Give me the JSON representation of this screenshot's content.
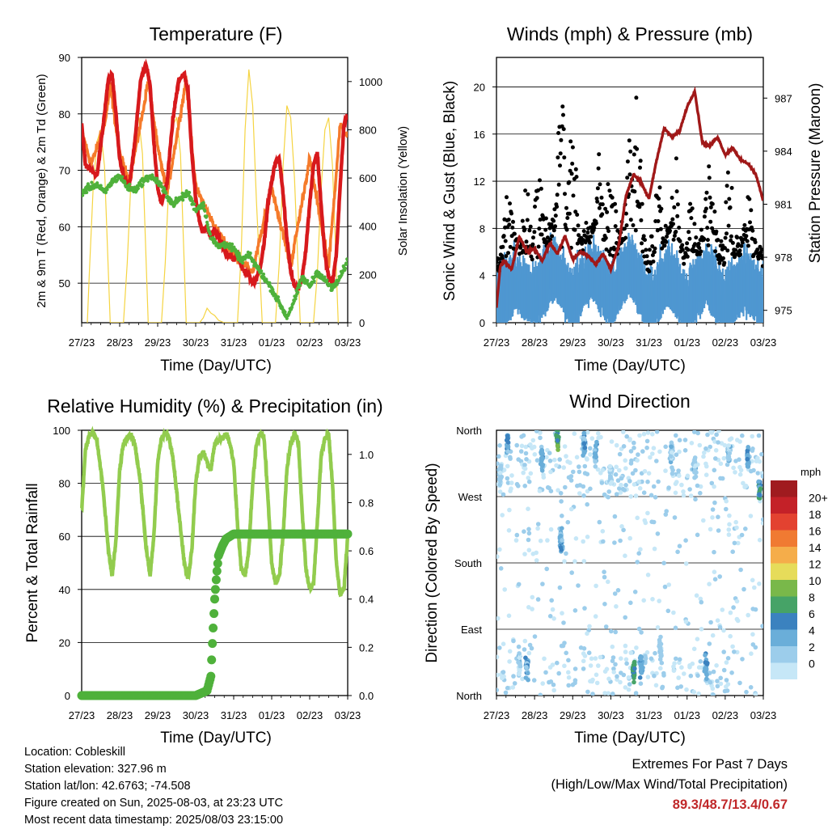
{
  "panels": {
    "temperature": {
      "title": "Temperature (F)",
      "ylabel": "2m & 9m T (Red, Orange) & 2m Td (Green)",
      "y2label": "Solar Insolation (Yellow)",
      "xlabel": "Time (Day/UTC)"
    },
    "winds": {
      "title": "Winds (mph) & Pressure (mb)",
      "ylabel": "Sonic Wind & Gust (Blue, Black)",
      "y2label": "Station Pressure (Maroon)",
      "xlabel": "Time (Day/UTC)"
    },
    "humidity": {
      "title": "Relative Humidity (%) & Precipitation (in)",
      "ylabel": "Percent & Total Rainfall",
      "xlabel": "Time (Day/UTC)"
    },
    "direction": {
      "title": "Wind Direction",
      "ylabel": "Direction (Colored By Speed)",
      "xlabel": "Time (Day/UTC)",
      "colorbar_label": "mph"
    }
  },
  "x_ticks": [
    "27/23",
    "28/23",
    "29/23",
    "30/23",
    "31/23",
    "01/23",
    "02/23",
    "03/23"
  ],
  "info": {
    "location": "Location: Cobleskill",
    "elevation": "Station elevation: 327.96 m",
    "latlon": "Station lat/lon: 42.6763; -74.508",
    "created": "Figure created on Sun, 2025-08-03, at 23:23 UTC",
    "recent": "Most recent data timestamp: 2025/08/03 23:15:00"
  },
  "extremes": {
    "line1": "Extremes For Past 7 Days",
    "line2": "(High/Low/Max Wind/Total Precipitation)",
    "values": "89.3/48.7/13.4/0.67"
  },
  "colors": {
    "temp_2m": "#d7191c",
    "temp_9m": "#f57a2a",
    "dewpoint": "#4fb13b",
    "insolation": "#f5d442",
    "wind": "#4f97d1",
    "gust": "#000000",
    "pressure": "#a01818",
    "rh": "#92cc4e",
    "precip": "#4fb13b"
  },
  "chart_data": [
    {
      "type": "line",
      "title": "Temperature (F)",
      "xlabel": "Time (Day/UTC)",
      "ylabel": "2m & 9m T (Red, Orange) & 2m Td (Green)",
      "y2label": "Solar Insolation (Yellow)",
      "x_unit": "days since 27/23 UTC",
      "ylim": [
        43,
        90
      ],
      "y_ticks": [
        50,
        60,
        70,
        80,
        90
      ],
      "y2lim": [
        0,
        1100
      ],
      "y2_ticks": [
        0,
        200,
        400,
        600,
        800,
        1000
      ],
      "series": [
        {
          "name": "2m T",
          "axis": "left",
          "x": [
            0,
            0.1,
            0.25,
            0.4,
            0.55,
            0.7,
            0.8,
            0.9,
            1.0,
            1.1,
            1.25,
            1.4,
            1.55,
            1.7,
            1.8,
            1.9,
            2.0,
            2.1,
            2.25,
            2.4,
            2.55,
            2.7,
            2.8,
            2.9,
            3.0,
            3.1,
            3.2,
            3.3,
            3.4,
            3.5,
            3.6,
            3.7,
            3.8,
            3.9,
            4.0,
            4.1,
            4.2,
            4.3,
            4.4,
            4.5,
            4.6,
            4.7,
            4.8,
            4.9,
            5.0,
            5.1,
            5.2,
            5.3,
            5.4,
            5.5,
            5.6,
            5.7,
            5.8,
            5.9,
            6.0,
            6.1,
            6.2,
            6.3,
            6.4,
            6.5,
            6.6,
            6.7,
            6.8,
            6.9,
            7.0
          ],
          "values": [
            78,
            71,
            70,
            69,
            77,
            86,
            87,
            80,
            72,
            69,
            67,
            75,
            86,
            88.5,
            85,
            75,
            67,
            64,
            68,
            79,
            86,
            87,
            84,
            73,
            65,
            61,
            59,
            60,
            58,
            59.5,
            58,
            57,
            55,
            55,
            54,
            55,
            53,
            52,
            51.5,
            50,
            51,
            53,
            57,
            64,
            68,
            71.5,
            72,
            66,
            58,
            52,
            49.5,
            49,
            51,
            56,
            64,
            71,
            73,
            64,
            55,
            51,
            50,
            55,
            67,
            78,
            80
          ]
        },
        {
          "name": "9m T",
          "axis": "left",
          "x": [
            0,
            0.25,
            0.6,
            0.75,
            1.0,
            1.25,
            1.6,
            1.75,
            2.0,
            2.25,
            2.6,
            2.75,
            3.0,
            3.5,
            4.0,
            4.5,
            5.0,
            5.5,
            6.0,
            6.5,
            6.8,
            7.0
          ],
          "values": [
            77,
            71,
            78,
            85,
            73,
            68,
            80,
            86,
            74,
            66,
            80,
            86,
            67,
            60,
            55,
            52,
            67,
            53,
            72,
            53,
            78,
            76
          ]
        },
        {
          "name": "2m Td",
          "axis": "left",
          "x": [
            0,
            0.2,
            0.4,
            0.6,
            0.8,
            1.0,
            1.2,
            1.4,
            1.6,
            1.8,
            2.0,
            2.2,
            2.4,
            2.6,
            2.8,
            3.0,
            3.2,
            3.4,
            3.6,
            3.8,
            4.0,
            4.2,
            4.4,
            4.6,
            4.8,
            5.0,
            5.2,
            5.4,
            5.6,
            5.8,
            6.0,
            6.2,
            6.4,
            6.6,
            6.8,
            7.0
          ],
          "values": [
            66,
            67,
            67.5,
            66,
            68,
            69,
            67,
            66.5,
            68,
            69,
            68,
            66,
            64,
            65,
            66,
            63,
            64,
            58,
            56.5,
            57,
            56,
            54,
            55,
            53,
            51,
            49,
            46.5,
            44,
            47,
            51,
            49.5,
            52,
            50.5,
            49,
            51,
            54
          ]
        },
        {
          "name": "Solar Insolation",
          "axis": "right",
          "x": [
            0.15,
            0.2,
            0.3,
            0.4,
            0.5,
            0.6,
            0.75,
            1.1,
            1.2,
            1.3,
            1.4,
            1.5,
            1.6,
            1.75,
            2.1,
            2.2,
            2.3,
            2.4,
            2.5,
            2.6,
            2.75,
            3.1,
            3.2,
            3.3,
            3.4,
            3.5,
            3.6,
            3.75,
            4.1,
            4.2,
            4.3,
            4.4,
            4.5,
            4.6,
            4.75,
            5.1,
            5.2,
            5.3,
            5.4,
            5.5,
            5.6,
            5.75,
            6.1,
            6.2,
            6.3,
            6.4,
            6.5,
            6.6,
            6.75
          ],
          "values": [
            0,
            200,
            550,
            750,
            800,
            650,
            0,
            0,
            250,
            600,
            800,
            850,
            700,
            0,
            0,
            250,
            600,
            820,
            850,
            700,
            0,
            0,
            20,
            60,
            40,
            30,
            10,
            0,
            0,
            300,
            800,
            1050,
            900,
            500,
            0,
            0,
            250,
            650,
            900,
            850,
            600,
            0,
            0,
            200,
            550,
            800,
            850,
            650,
            0
          ]
        }
      ]
    },
    {
      "type": "line",
      "title": "Winds (mph) & Pressure (mb)",
      "xlabel": "Time (Day/UTC)",
      "ylabel": "Sonic Wind & Gust (Blue, Black)",
      "y2label": "Station Pressure (Maroon)",
      "x_unit": "days since 27/23 UTC",
      "ylim": [
        0,
        22.5
      ],
      "y_ticks": [
        0,
        4,
        8,
        12,
        16,
        20
      ],
      "y2lim": [
        974.3,
        989.3
      ],
      "y2_ticks": [
        975,
        978,
        981,
        984,
        987
      ],
      "series": [
        {
          "name": "Station Pressure",
          "axis": "right",
          "x": [
            0,
            0.1,
            0.2,
            0.4,
            0.6,
            0.8,
            1.0,
            1.2,
            1.4,
            1.6,
            1.8,
            2.0,
            2.2,
            2.4,
            2.6,
            2.8,
            3.0,
            3.2,
            3.4,
            3.6,
            3.8,
            4.0,
            4.2,
            4.4,
            4.6,
            4.8,
            5.0,
            5.2,
            5.4,
            5.6,
            5.8,
            6.0,
            6.2,
            6.4,
            6.6,
            6.8,
            7.0
          ],
          "values": [
            975.2,
            977.5,
            977.8,
            977.3,
            979.2,
            978.3,
            978.5,
            977.8,
            978.8,
            978.2,
            979.2,
            977.9,
            978.3,
            978.1,
            977.6,
            978.2,
            977.3,
            978.6,
            981.5,
            982.7,
            982.2,
            981.3,
            983.5,
            985.3,
            984.8,
            985.1,
            986.5,
            987.4,
            984.5,
            984.3,
            984.8,
            983.8,
            984.2,
            983.5,
            983.3,
            982.7,
            981.2
          ]
        },
        {
          "name": "Sonic Wind (mean)",
          "axis": "left",
          "x": [
            0,
            0.5,
            1.0,
            1.5,
            2.0,
            2.5,
            3.0,
            3.5,
            4.0,
            4.5,
            5.0,
            5.5,
            6.0,
            6.5,
            7.0
          ],
          "values": [
            1.5,
            3.5,
            2,
            4.5,
            2,
            4.5,
            2,
            5,
            1.5,
            4,
            1.5,
            4,
            1.5,
            3.5,
            2
          ]
        },
        {
          "name": "Gust (peak)",
          "axis": "left",
          "x": [
            0.3,
            0.8,
            1.1,
            1.7,
            2.0,
            2.7,
            3.0,
            3.5,
            3.7,
            4.2,
            4.7,
            5.1,
            5.6,
            6.1,
            6.6
          ],
          "values": [
            11,
            12.5,
            14,
            19.5,
            19,
            14,
            14,
            16,
            20.5,
            15,
            13,
            11,
            14,
            14,
            11.5
          ]
        }
      ]
    },
    {
      "type": "line",
      "title": "Relative Humidity (%) & Precipitation (in)",
      "xlabel": "Time (Day/UTC)",
      "ylabel": "Percent & Total Rainfall",
      "x_unit": "days since 27/23 UTC",
      "ylim": [
        0,
        100
      ],
      "y_ticks": [
        0,
        20,
        40,
        60,
        80,
        100
      ],
      "y2lim": [
        0,
        1.1
      ],
      "y2_ticks": [
        0.0,
        0.2,
        0.4,
        0.6,
        0.8,
        1.0
      ],
      "series": [
        {
          "name": "Relative Humidity",
          "axis": "left",
          "x": [
            0,
            0.1,
            0.2,
            0.3,
            0.4,
            0.55,
            0.7,
            0.8,
            0.9,
            1.0,
            1.1,
            1.2,
            1.3,
            1.4,
            1.55,
            1.7,
            1.8,
            1.9,
            2.0,
            2.1,
            2.2,
            2.3,
            2.4,
            2.55,
            2.7,
            2.8,
            2.9,
            3.0,
            3.1,
            3.2,
            3.3,
            3.4,
            3.5,
            3.6,
            3.7,
            3.8,
            3.9,
            4.0,
            4.1,
            4.2,
            4.3,
            4.4,
            4.5,
            4.6,
            4.7,
            4.8,
            4.9,
            5.0,
            5.1,
            5.2,
            5.3,
            5.4,
            5.5,
            5.6,
            5.7,
            5.8,
            5.9,
            6.0,
            6.1,
            6.2,
            6.3,
            6.4,
            6.5,
            6.6,
            6.7,
            6.8,
            6.9,
            7.0
          ],
          "values": [
            70,
            93,
            98,
            99,
            96,
            80,
            55,
            45,
            58,
            85,
            95,
            97,
            98,
            95,
            80,
            55,
            45,
            60,
            88,
            97,
            99,
            97,
            90,
            70,
            50,
            44,
            55,
            80,
            90,
            92,
            88,
            85,
            95,
            96,
            97,
            99,
            95,
            88,
            65,
            48,
            45,
            55,
            80,
            95,
            99,
            97,
            75,
            50,
            42,
            45,
            60,
            85,
            95,
            99,
            96,
            70,
            48,
            40,
            42,
            65,
            90,
            97,
            98,
            80,
            50,
            38,
            40,
            60
          ]
        },
        {
          "name": "Total Precipitation",
          "axis": "right",
          "x": [
            0,
            3.0,
            3.3,
            3.4,
            3.45,
            3.5,
            3.55,
            3.6,
            3.7,
            3.8,
            4.0,
            4.5,
            5.0,
            6.0,
            7.0
          ],
          "values": [
            0,
            0,
            0.02,
            0.08,
            0.25,
            0.4,
            0.5,
            0.58,
            0.62,
            0.65,
            0.67,
            0.67,
            0.67,
            0.67,
            0.67
          ]
        }
      ]
    },
    {
      "type": "scatter",
      "title": "Wind Direction",
      "xlabel": "Time (Day/UTC)",
      "ylabel": "Direction (Colored By Speed)",
      "x_unit": "days since 27/23 UTC",
      "ylim": [
        0,
        360
      ],
      "y_ticks": [
        "North",
        "East",
        "South",
        "West",
        "North"
      ],
      "colorbar": {
        "label": "mph",
        "levels": [
          "0",
          "2",
          "4",
          "6",
          "8",
          "10",
          "12",
          "14",
          "16",
          "18",
          "20+"
        ],
        "colors": [
          "#c6e7f7",
          "#9ccdeb",
          "#6aaed9",
          "#3b82bf",
          "#46a367",
          "#79b84a",
          "#e6dc5a",
          "#f5ad4a",
          "#f07a32",
          "#e34230",
          "#c42128",
          "#a01b1f"
        ]
      },
      "clusters": [
        {
          "x": 0.1,
          "dir": 300,
          "speed": 4
        },
        {
          "x": 0.3,
          "dir": 340,
          "speed": 6
        },
        {
          "x": 0.6,
          "dir": 45,
          "speed": 4
        },
        {
          "x": 0.8,
          "dir": 40,
          "speed": 6
        },
        {
          "x": 1.2,
          "dir": 320,
          "speed": 6
        },
        {
          "x": 1.6,
          "dir": 350,
          "speed": 10
        },
        {
          "x": 1.7,
          "dir": 210,
          "speed": 6
        },
        {
          "x": 2.3,
          "dir": 340,
          "speed": 6
        },
        {
          "x": 2.6,
          "dir": 330,
          "speed": 6
        },
        {
          "x": 3.0,
          "dir": 300,
          "speed": 4
        },
        {
          "x": 3.6,
          "dir": 35,
          "speed": 10
        },
        {
          "x": 3.8,
          "dir": 40,
          "speed": 6
        },
        {
          "x": 4.3,
          "dir": 60,
          "speed": 4
        },
        {
          "x": 4.6,
          "dir": 330,
          "speed": 4
        },
        {
          "x": 5.2,
          "dir": 310,
          "speed": 4
        },
        {
          "x": 5.5,
          "dir": 40,
          "speed": 6
        },
        {
          "x": 6.1,
          "dir": 330,
          "speed": 4
        },
        {
          "x": 6.6,
          "dir": 320,
          "speed": 6
        },
        {
          "x": 6.9,
          "dir": 280,
          "speed": 8
        }
      ]
    }
  ]
}
